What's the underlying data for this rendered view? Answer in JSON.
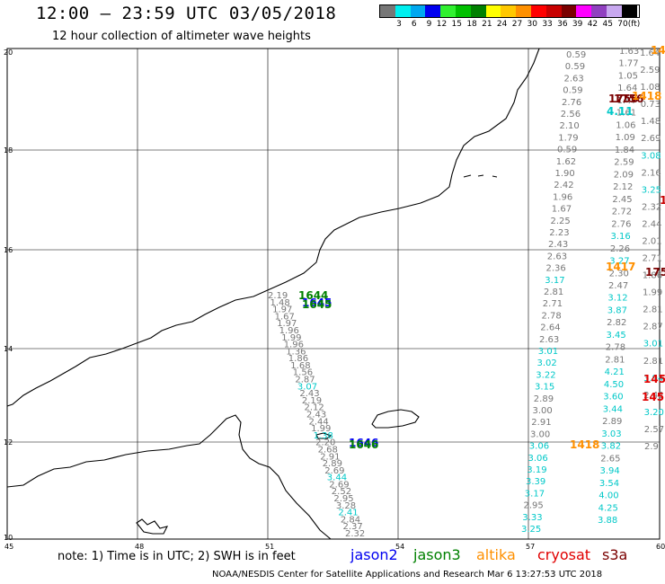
{
  "header": {
    "title": "12:00 – 23:59 UTC 03/05/2018",
    "subtitle": "12 hour collection of altimeter wave heights"
  },
  "legend": {
    "colors": [
      "#777777",
      "#00f0f0",
      "#00a8f0",
      "#0000f0",
      "#30f030",
      "#00c000",
      "#008000",
      "#ffff00",
      "#ffc800",
      "#ff9000",
      "#ff0000",
      "#c80000",
      "#7a0000",
      "#ff00ff",
      "#9040c0",
      "#c8a8f0",
      "#000000"
    ],
    "ticks": [
      "3",
      "6",
      "9",
      "12",
      "15",
      "18",
      "21",
      "24",
      "27",
      "30",
      "33",
      "36",
      "39",
      "42",
      "45",
      "70"
    ],
    "unit": "(ft)"
  },
  "map": {
    "lon_labels": [
      "45",
      "48",
      "51",
      "54",
      "57",
      "60"
    ],
    "lat_labels": [
      "20",
      "18",
      "16",
      "14",
      "12",
      "10"
    ]
  },
  "tracks": {
    "center": [
      {
        "text": "2.19",
        "c": "#777777"
      },
      {
        "text": "1.48",
        "c": "#777777"
      },
      {
        "text": "1.97",
        "c": "#777777"
      },
      {
        "text": "1.67",
        "c": "#777777"
      },
      {
        "text": "1.97",
        "c": "#777777"
      },
      {
        "text": "1.96",
        "c": "#777777"
      },
      {
        "text": "1.99",
        "c": "#777777"
      },
      {
        "text": "1.96",
        "c": "#777777"
      },
      {
        "text": "1.36",
        "c": "#777777"
      },
      {
        "text": "1.86",
        "c": "#777777"
      },
      {
        "text": "1.68",
        "c": "#777777"
      },
      {
        "text": "1.56",
        "c": "#777777"
      },
      {
        "text": "2.87",
        "c": "#777777"
      },
      {
        "text": "3.07",
        "c": "#00c8c8"
      },
      {
        "text": "2.43",
        "c": "#777777"
      },
      {
        "text": "2.19",
        "c": "#777777"
      },
      {
        "text": "2.12",
        "c": "#777777"
      },
      {
        "text": "2.43",
        "c": "#777777"
      },
      {
        "text": "2.44",
        "c": "#777777"
      },
      {
        "text": "1.99",
        "c": "#777777"
      },
      {
        "text": "1.38",
        "c": "#00c8c8"
      },
      {
        "text": "2.20",
        "c": "#777777"
      },
      {
        "text": "2.68",
        "c": "#777777"
      },
      {
        "text": "2.91",
        "c": "#777777"
      },
      {
        "text": "2.89",
        "c": "#777777"
      },
      {
        "text": "2.69",
        "c": "#777777"
      },
      {
        "text": "3.44",
        "c": "#00c8c8"
      },
      {
        "text": "2.69",
        "c": "#777777"
      },
      {
        "text": "2.52",
        "c": "#777777"
      },
      {
        "text": "2.95",
        "c": "#777777"
      },
      {
        "text": "3.28",
        "c": "#777777"
      },
      {
        "text": "2.41",
        "c": "#00c8c8"
      },
      {
        "text": "2.84",
        "c": "#777777"
      },
      {
        "text": "2.37",
        "c": "#777777"
      },
      {
        "text": "2.32",
        "c": "#777777"
      }
    ],
    "east_a": [
      {
        "text": "0.59",
        "c": "#777777"
      },
      {
        "text": "0.59",
        "c": "#777777"
      },
      {
        "text": "2.63",
        "c": "#777777"
      },
      {
        "text": "0.59",
        "c": "#777777"
      },
      {
        "text": "2.76",
        "c": "#777777"
      },
      {
        "text": "2.56",
        "c": "#777777"
      },
      {
        "text": "2.10",
        "c": "#777777"
      },
      {
        "text": "1.79",
        "c": "#777777"
      },
      {
        "text": "0.59",
        "c": "#777777"
      },
      {
        "text": "1.62",
        "c": "#777777"
      },
      {
        "text": "1.90",
        "c": "#777777"
      },
      {
        "text": "2.42",
        "c": "#777777"
      },
      {
        "text": "1.96",
        "c": "#777777"
      },
      {
        "text": "1.67",
        "c": "#777777"
      },
      {
        "text": "2.25",
        "c": "#777777"
      },
      {
        "text": "2.23",
        "c": "#777777"
      },
      {
        "text": "2.43",
        "c": "#777777"
      },
      {
        "text": "2.63",
        "c": "#777777"
      },
      {
        "text": "2.36",
        "c": "#777777"
      },
      {
        "text": "3.17",
        "c": "#00c8c8"
      },
      {
        "text": "2.81",
        "c": "#777777"
      },
      {
        "text": "2.71",
        "c": "#777777"
      },
      {
        "text": "2.78",
        "c": "#777777"
      },
      {
        "text": "2.64",
        "c": "#777777"
      },
      {
        "text": "2.63",
        "c": "#777777"
      },
      {
        "text": "3.01",
        "c": "#00c8c8"
      },
      {
        "text": "3.02",
        "c": "#00c8c8"
      },
      {
        "text": "3.22",
        "c": "#00c8c8"
      },
      {
        "text": "3.15",
        "c": "#00c8c8"
      },
      {
        "text": "2.89",
        "c": "#777777"
      },
      {
        "text": "3.00",
        "c": "#777777"
      },
      {
        "text": "2.91",
        "c": "#777777"
      },
      {
        "text": "3.00",
        "c": "#777777"
      },
      {
        "text": "3.06",
        "c": "#00c8c8"
      },
      {
        "text": "3.06",
        "c": "#00c8c8"
      },
      {
        "text": "3.19",
        "c": "#00c8c8"
      },
      {
        "text": "3.39",
        "c": "#00c8c8"
      },
      {
        "text": "3.17",
        "c": "#00c8c8"
      },
      {
        "text": "2.95",
        "c": "#777777"
      },
      {
        "text": "3.33",
        "c": "#00c8c8"
      },
      {
        "text": "3.25",
        "c": "#00c8c8"
      }
    ],
    "east_b": [
      {
        "text": "1.63",
        "c": "#777777"
      },
      {
        "text": "1.77",
        "c": "#777777"
      },
      {
        "text": "1.05",
        "c": "#777777"
      },
      {
        "text": "1.64",
        "c": "#777777"
      },
      {
        "text": "1.47",
        "c": "#777777"
      },
      {
        "text": "1.61",
        "c": "#777777"
      },
      {
        "text": "1.06",
        "c": "#777777"
      },
      {
        "text": "1.09",
        "c": "#777777"
      },
      {
        "text": "1.84",
        "c": "#777777"
      },
      {
        "text": "2.59",
        "c": "#777777"
      },
      {
        "text": "2.09",
        "c": "#777777"
      },
      {
        "text": "2.12",
        "c": "#777777"
      },
      {
        "text": "2.45",
        "c": "#777777"
      },
      {
        "text": "2.72",
        "c": "#777777"
      },
      {
        "text": "2.76",
        "c": "#777777"
      },
      {
        "text": "3.16",
        "c": "#00c8c8"
      },
      {
        "text": "2.26",
        "c": "#777777"
      },
      {
        "text": "3.27",
        "c": "#00c8c8"
      },
      {
        "text": "2.30",
        "c": "#777777"
      },
      {
        "text": "2.47",
        "c": "#777777"
      },
      {
        "text": "3.12",
        "c": "#00c8c8"
      },
      {
        "text": "3.87",
        "c": "#00c8c8"
      },
      {
        "text": "2.82",
        "c": "#777777"
      },
      {
        "text": "3.45",
        "c": "#00c8c8"
      },
      {
        "text": "2.78",
        "c": "#777777"
      },
      {
        "text": "2.81",
        "c": "#777777"
      },
      {
        "text": "4.21",
        "c": "#00c8c8"
      },
      {
        "text": "4.50",
        "c": "#00c8c8"
      },
      {
        "text": "3.60",
        "c": "#00c8c8"
      },
      {
        "text": "3.44",
        "c": "#00c8c8"
      },
      {
        "text": "2.89",
        "c": "#777777"
      },
      {
        "text": "3.03",
        "c": "#00c8c8"
      },
      {
        "text": "3.82",
        "c": "#00c8c8"
      },
      {
        "text": "2.65",
        "c": "#777777"
      },
      {
        "text": "3.94",
        "c": "#00c8c8"
      },
      {
        "text": "3.54",
        "c": "#00c8c8"
      },
      {
        "text": "4.00",
        "c": "#00c8c8"
      },
      {
        "text": "4.25",
        "c": "#00c8c8"
      },
      {
        "text": "3.88",
        "c": "#00c8c8"
      }
    ],
    "east_c": [
      {
        "text": "1.64",
        "c": "#777777"
      },
      {
        "text": "2.59",
        "c": "#777777"
      },
      {
        "text": "1.08",
        "c": "#777777"
      },
      {
        "text": "0.73",
        "c": "#777777"
      },
      {
        "text": "1.48",
        "c": "#777777"
      },
      {
        "text": "2.69",
        "c": "#777777"
      },
      {
        "text": "3.08",
        "c": "#00c8c8"
      },
      {
        "text": "2.16",
        "c": "#777777"
      },
      {
        "text": "3.25",
        "c": "#00c8c8"
      },
      {
        "text": "2.32",
        "c": "#777777"
      },
      {
        "text": "2.44",
        "c": "#777777"
      },
      {
        "text": "2.01",
        "c": "#777777"
      },
      {
        "text": "2.71",
        "c": "#777777"
      },
      {
        "text": "1.86",
        "c": "#777777"
      },
      {
        "text": "1.99",
        "c": "#777777"
      },
      {
        "text": "2.81",
        "c": "#777777"
      },
      {
        "text": "2.87",
        "c": "#777777"
      },
      {
        "text": "3.01",
        "c": "#00c8c8"
      },
      {
        "text": "2.81",
        "c": "#777777"
      },
      {
        "text": "3.94",
        "c": "#00c8c8"
      },
      {
        "text": "2.42",
        "c": "#777777"
      },
      {
        "text": "3.20",
        "c": "#00c8c8"
      },
      {
        "text": "2.57",
        "c": "#777777"
      },
      {
        "text": "2.9",
        "c": "#777777"
      }
    ]
  },
  "time_labels": [
    {
      "text": "1644",
      "c": "#008000"
    },
    {
      "text": "1645",
      "c": "#0000f0"
    },
    {
      "text": "1645",
      "c": "#008000"
    },
    {
      "text": "1646",
      "c": "#0000f0"
    },
    {
      "text": "1646",
      "c": "#008000"
    },
    {
      "text": "1418",
      "c": "#ff9000"
    },
    {
      "text": "1417",
      "c": "#ff9000"
    },
    {
      "text": "1756",
      "c": "#7a0000"
    },
    {
      "text": "1756",
      "c": "#7a0000"
    },
    {
      "text": "1418",
      "c": "#ff9000"
    },
    {
      "text": "14",
      "c": "#ff9000"
    },
    {
      "text": "175",
      "c": "#7a0000"
    },
    {
      "text": "145",
      "c": "#e00000"
    },
    {
      "text": "145",
      "c": "#e00000"
    },
    {
      "text": "1",
      "c": "#c80000"
    },
    {
      "text": "4.11",
      "c": "#00c8c8"
    }
  ],
  "footer": {
    "note": "note: 1) Time is in UTC; 2) SWH is in feet",
    "satellites": [
      {
        "name": "jason2",
        "color": "#0000f0"
      },
      {
        "name": "jason3",
        "color": "#008000"
      },
      {
        "name": "altika",
        "color": "#ff9000"
      },
      {
        "name": "cryosat",
        "color": "#e00000"
      },
      {
        "name": "s3a",
        "color": "#7a0000"
      }
    ],
    "credit": "NOAA/NESDIS Center for Satellite Applications and Research    Mar  6 13:27:53 UTC 2018"
  }
}
